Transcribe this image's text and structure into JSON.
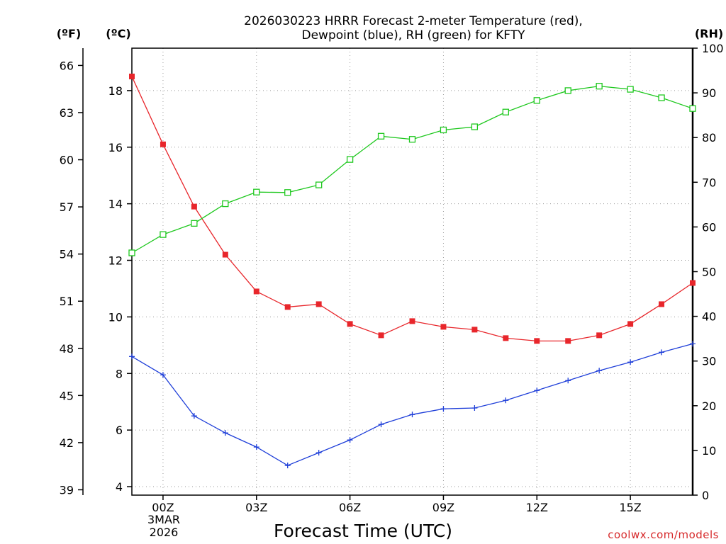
{
  "chart_data": {
    "type": "line",
    "title_line1": "2026030223 HRRR Forecast 2-meter Temperature (red),",
    "title_line2": "Dewpoint (blue), RH (green) for KFTY",
    "xlabel": "Forecast Time (UTC)",
    "watermark": "coolwx.com/models",
    "date_label": {
      "day": "3MAR",
      "year": "2026"
    },
    "unit_labels": {
      "fahrenheit": "(ºF)",
      "celsius": "(ºC)",
      "rh": "(RH)"
    },
    "x_hours": [
      -1,
      0,
      1,
      2,
      3,
      4,
      5,
      6,
      7,
      8,
      9,
      10,
      11,
      12,
      13,
      14,
      15,
      16,
      17
    ],
    "xlim": [
      -1,
      17
    ],
    "x_ticks": [
      {
        "hour": 0,
        "label": "00Z"
      },
      {
        "hour": 3,
        "label": "03Z"
      },
      {
        "hour": 6,
        "label": "06Z"
      },
      {
        "hour": 9,
        "label": "09Z"
      },
      {
        "hour": 12,
        "label": "12Z"
      },
      {
        "hour": 15,
        "label": "15Z"
      }
    ],
    "celsius_axis": {
      "lim": [
        3.7,
        19.5
      ],
      "ticks": [
        4,
        6,
        8,
        10,
        12,
        14,
        16,
        18
      ]
    },
    "fahrenheit_axis": {
      "ticks": [
        39,
        42,
        45,
        48,
        51,
        54,
        57,
        60,
        63,
        66
      ]
    },
    "rh_axis": {
      "lim": [
        0,
        100
      ],
      "ticks": [
        0,
        10,
        20,
        30,
        40,
        50,
        60,
        70,
        80,
        90,
        100
      ]
    },
    "series": [
      {
        "name": "Temperature",
        "unit": "C",
        "color": "#e8262b",
        "marker": "filled-square",
        "values": [
          18.5,
          16.1,
          13.9,
          12.2,
          10.9,
          10.35,
          10.45,
          9.75,
          9.35,
          9.85,
          9.65,
          9.55,
          9.25,
          9.15,
          9.15,
          9.35,
          9.75,
          10.45,
          11.2
        ]
      },
      {
        "name": "Dewpoint",
        "unit": "C",
        "color": "#1f3fd9",
        "marker": "plus",
        "values": [
          8.6,
          7.95,
          6.5,
          5.9,
          5.4,
          4.75,
          5.2,
          5.65,
          6.2,
          6.55,
          6.75,
          6.78,
          7.05,
          7.4,
          7.75,
          8.1,
          8.4,
          8.75,
          9.05
        ]
      },
      {
        "name": "Relative Humidity",
        "unit": "%",
        "color": "#1ec81e",
        "marker": "open-square",
        "values": [
          54.2,
          58.3,
          60.8,
          65.2,
          67.8,
          67.7,
          69.4,
          75.1,
          80.3,
          79.6,
          81.7,
          82.4,
          85.7,
          88.3,
          90.5,
          91.5,
          90.8,
          88.9,
          86.5
        ]
      }
    ]
  }
}
